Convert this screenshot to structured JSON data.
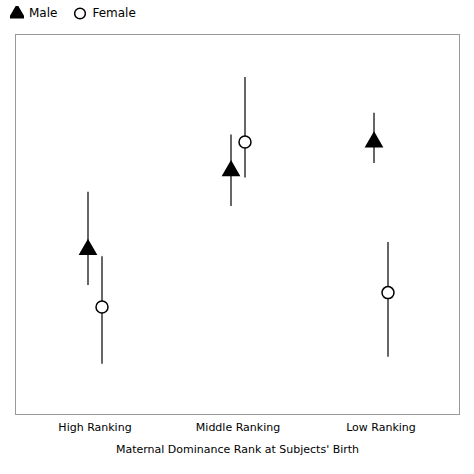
{
  "chart_data": {
    "type": "scatter",
    "xlabel": "Maternal Dominance Rank at Subjects' Birth",
    "categories": [
      "High Ranking",
      "Middle Ranking",
      "Low Ranking"
    ],
    "series": [
      {
        "name": "Male",
        "color": "#000000",
        "marker": "triangle",
        "values": [
          0.58,
          0.69,
          0.73
        ],
        "yerr_lower": [
          0.05,
          0.05,
          0.03
        ],
        "yerr_upper": [
          0.08,
          0.05,
          0.04
        ]
      },
      {
        "name": "Female",
        "color": "#000000",
        "marker": "open_circle",
        "values": [
          0.5,
          0.73,
          0.52
        ],
        "yerr_lower": [
          0.08,
          0.05,
          0.09
        ],
        "yerr_upper": [
          0.07,
          0.09,
          0.07
        ]
      }
    ],
    "ylim": [
      0.35,
      0.88
    ],
    "tick_labels": "x",
    "legend": "upper left"
  }
}
